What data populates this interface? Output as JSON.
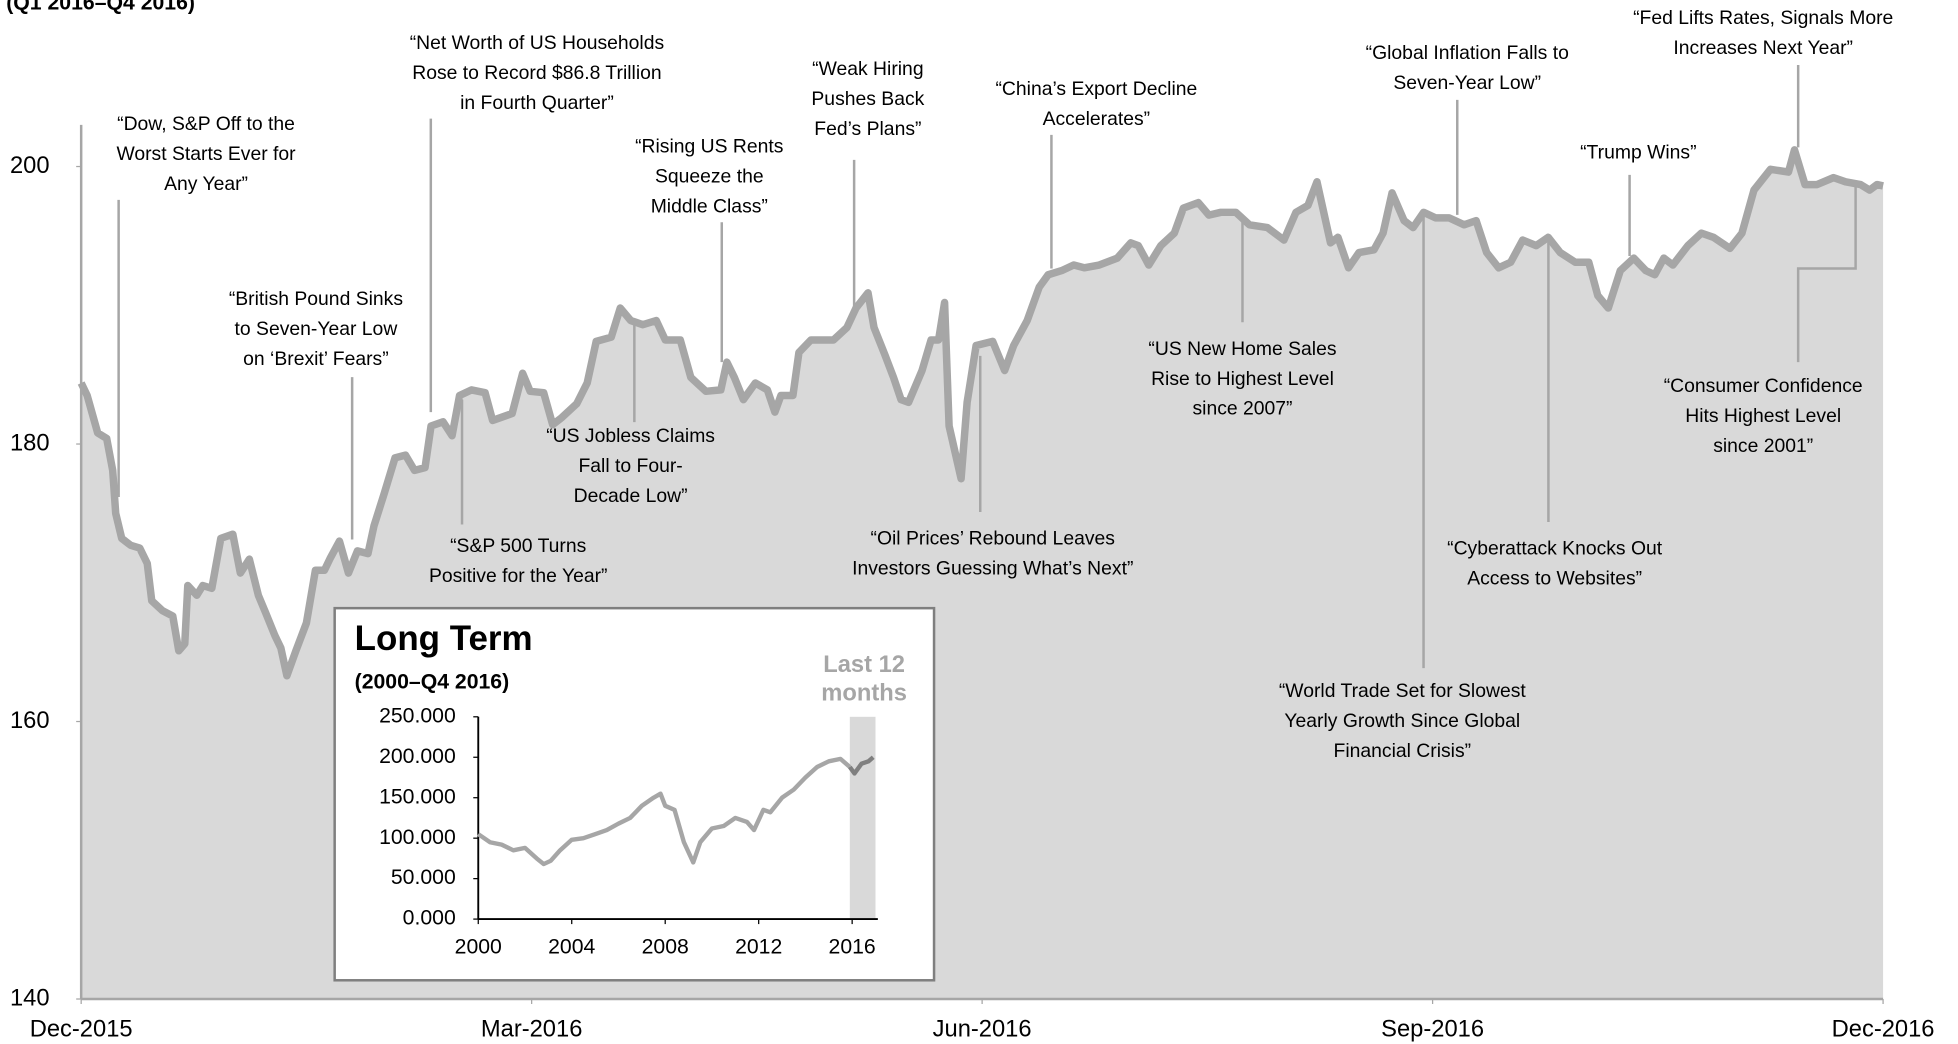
{
  "chart_data": [
    {
      "type": "area",
      "subtitle": "(Q1 2016–Q4 2016)",
      "x": [
        0,
        0.04,
        0.11,
        0.17,
        0.21,
        0.23,
        0.27,
        0.33,
        0.39,
        0.44,
        0.47,
        0.54,
        0.61,
        0.65,
        0.69,
        0.71,
        0.77,
        0.81,
        0.87,
        0.93,
        1.01,
        1.06,
        1.12,
        1.18,
        1.23,
        1.29,
        1.33,
        1.37,
        1.43,
        1.5,
        1.56,
        1.62,
        1.66,
        1.72,
        1.78,
        1.84,
        1.91,
        1.95,
        2.02,
        2.09,
        2.16,
        2.22,
        2.29,
        2.33,
        2.41,
        2.47,
        2.52,
        2.6,
        2.69,
        2.74,
        2.87,
        2.94,
        2.99,
        3.08,
        3.14,
        3.2,
        3.3,
        3.37,
        3.43,
        3.53,
        3.59,
        3.66,
        3.74,
        3.83,
        3.89,
        3.99,
        4.06,
        4.16,
        4.26,
        4.3,
        4.35,
        4.41,
        4.49,
        4.57,
        4.62,
        4.66,
        4.74,
        4.78,
        4.86,
        4.95,
        5.01,
        5.1,
        5.16,
        5.24,
        5.28,
        5.35,
        5.41,
        5.46,
        5.51,
        5.6,
        5.66,
        5.71,
        5.75,
        5.78,
        5.86,
        5.9,
        5.96,
        6.07,
        6.15,
        6.21,
        6.3,
        6.38,
        6.44,
        6.53,
        6.61,
        6.68,
        6.78,
        6.9,
        6.99,
        7.04,
        7.11,
        7.19,
        7.28,
        7.34,
        7.44,
        7.51,
        7.59,
        7.69,
        7.78,
        7.9,
        8.01,
        8.09,
        8.17,
        8.23,
        8.32,
        8.37,
        8.44,
        8.51,
        8.61,
        8.67,
        8.73,
        8.81,
        8.87,
        8.94,
        9.02,
        9.11,
        9.21,
        9.29,
        9.36,
        9.44,
        9.52,
        9.6,
        9.69,
        9.77,
        9.85,
        9.95,
        10.04,
        10.1,
        10.17,
        10.25,
        10.34,
        10.42,
        10.48,
        10.54,
        10.6,
        10.7,
        10.79,
        10.87,
        10.98,
        11.06,
        11.14,
        11.25,
        11.37,
        11.41,
        11.48,
        11.56,
        11.67,
        11.75,
        11.85,
        11.91,
        11.96,
        12.0
      ],
      "values": [
        184.4,
        183.5,
        180.8,
        180.4,
        178.1,
        175,
        173.2,
        172.7,
        172.5,
        171.4,
        168.7,
        168,
        167.6,
        165.1,
        165.6,
        169.8,
        169.1,
        169.8,
        169.6,
        173.2,
        173.5,
        170.7,
        171.7,
        169.1,
        167.8,
        166.2,
        165.3,
        163.3,
        165.1,
        167.1,
        170.9,
        170.9,
        171.8,
        173,
        170.7,
        172.3,
        172.1,
        174.1,
        176.5,
        179,
        179.2,
        178.1,
        178.3,
        181.3,
        181.6,
        180.6,
        183.5,
        183.9,
        183.7,
        181.7,
        182.2,
        185.1,
        183.8,
        183.7,
        181.4,
        181.9,
        182.9,
        184.4,
        187.4,
        187.7,
        189.8,
        188.9,
        188.6,
        188.9,
        187.5,
        187.5,
        184.8,
        183.8,
        183.9,
        185.9,
        184.8,
        183.2,
        184.4,
        183.9,
        182.3,
        183.5,
        183.5,
        186.6,
        187.5,
        187.5,
        187.5,
        188.4,
        189.8,
        190.9,
        188.4,
        186.5,
        184.8,
        183.2,
        183,
        185.3,
        187.5,
        187.5,
        190.2,
        181.3,
        177.5,
        183,
        187.1,
        187.4,
        185.3,
        187.1,
        188.9,
        191.3,
        192.2,
        192.5,
        192.9,
        192.7,
        192.9,
        193.4,
        194.5,
        194.3,
        192.9,
        194.3,
        195.2,
        197,
        197.4,
        196.5,
        196.7,
        196.7,
        195.8,
        195.6,
        194.7,
        196.7,
        197.2,
        198.9,
        194.5,
        194.9,
        192.7,
        193.8,
        194,
        195.2,
        198.1,
        196.1,
        195.6,
        196.7,
        196.3,
        196.3,
        195.8,
        196.1,
        193.8,
        192.7,
        193.1,
        194.7,
        194.3,
        194.9,
        193.8,
        193.1,
        193.1,
        190.7,
        189.8,
        192.5,
        193.4,
        192.5,
        192.2,
        193.4,
        192.9,
        194.3,
        195.2,
        194.9,
        194.1,
        195.2,
        198.3,
        199.8,
        199.6,
        201.2,
        198.7,
        198.7,
        199.2,
        198.9,
        198.7,
        198.3,
        198.7,
        198.6
      ],
      "color": "#a6a6a6",
      "fill": "#d9d9d9",
      "xlim": [
        0,
        12
      ],
      "xticks": [
        {
          "value": 0,
          "label": "Dec-2015"
        },
        {
          "value": 3,
          "label": "Mar-2016"
        },
        {
          "value": 6,
          "label": "Jun-2016"
        },
        {
          "value": 9,
          "label": "Sep-2016"
        },
        {
          "value": 12,
          "label": "Dec-2016"
        }
      ],
      "ylim": [
        140,
        203
      ],
      "yticks": [
        140,
        160,
        180,
        200
      ],
      "annotations": [
        [
          "“Dow, S&P Off to the",
          "Worst Starts Ever for",
          "Any Year”"
        ],
        [
          "“British Pound Sinks",
          "to Seven-Year Low",
          "on ‘Brexit’ Fears”"
        ],
        [
          "“Net Worth of US Households",
          "Rose to Record $86.8 Trillion",
          "in Fourth Quarter”"
        ],
        [
          "“S&P 500 Turns",
          "Positive for the Year”"
        ],
        [
          "“Rising US Rents",
          "Squeeze the",
          "Middle Class”"
        ],
        [
          "“US Jobless Claims",
          "Fall to Four-",
          "Decade Low”"
        ],
        [
          "“Weak Hiring",
          "Pushes Back",
          "Fed’s Plans”"
        ],
        [
          "“Oil Prices’ Rebound Leaves",
          "Investors Guessing What’s Next”"
        ],
        [
          "“China’s Export Decline",
          "Accelerates”"
        ],
        [
          "“US New Home Sales",
          "Rise to Highest Level",
          "since 2007”"
        ],
        [
          "“Global Inflation Falls to",
          "Seven-Year Low”"
        ],
        [
          "“World Trade Set for Slowest",
          "Yearly Growth Since Global",
          "Financial Crisis”"
        ],
        [
          "“Trump Wins”"
        ],
        [
          "“Cyberattack Knocks Out",
          "Access to Websites”"
        ],
        [
          "“Fed Lifts Rates, Signals More",
          "Increases Next Year”"
        ],
        [
          "“Consumer Confidence",
          "Hits Highest Level",
          "since 2001”"
        ]
      ]
    },
    {
      "type": "line",
      "title": "Long Term",
      "subtitle": "(2000–Q4 2016)",
      "highlight_label": [
        "Last 12",
        "months"
      ],
      "highlight": [
        2015.9,
        2017
      ],
      "x": [
        2000,
        2000.5,
        2001,
        2001.5,
        2002,
        2002.5,
        2002.8,
        2003.1,
        2003.5,
        2004,
        2004.5,
        2005,
        2005.5,
        2006,
        2006.5,
        2007,
        2007.5,
        2007.8,
        2008,
        2008.4,
        2008.8,
        2009.2,
        2009.5,
        2010,
        2010.5,
        2011,
        2011.5,
        2011.8,
        2012.2,
        2012.5,
        2013,
        2013.5,
        2014,
        2014.5,
        2015,
        2015.5,
        2015.9,
        2016.1,
        2016.4,
        2016.7,
        2016.9
      ],
      "values": [
        105,
        95,
        92,
        85,
        88,
        75,
        68,
        72,
        85,
        98,
        100,
        105,
        110,
        118,
        125,
        140,
        150,
        155,
        140,
        135,
        95,
        70,
        95,
        112,
        115,
        125,
        120,
        110,
        135,
        132,
        150,
        160,
        175,
        188,
        195,
        198,
        188,
        180,
        192,
        195,
        200
      ],
      "color": "#a6a6a6",
      "highlight_color": "#7f7f7f",
      "band_color": "#d9d9d9",
      "xlim": [
        2000,
        2017.1
      ],
      "xticks": [
        2000,
        2004,
        2008,
        2012,
        2016
      ],
      "ylim": [
        0,
        250
      ],
      "yticks": [
        {
          "value": 0,
          "label": "0.000"
        },
        {
          "value": 50,
          "label": "50.000"
        },
        {
          "value": 100,
          "label": "100.000"
        },
        {
          "value": 150,
          "label": "150.000"
        },
        {
          "value": 200,
          "label": "200.000"
        },
        {
          "value": 250,
          "label": "250.000"
        }
      ]
    }
  ]
}
